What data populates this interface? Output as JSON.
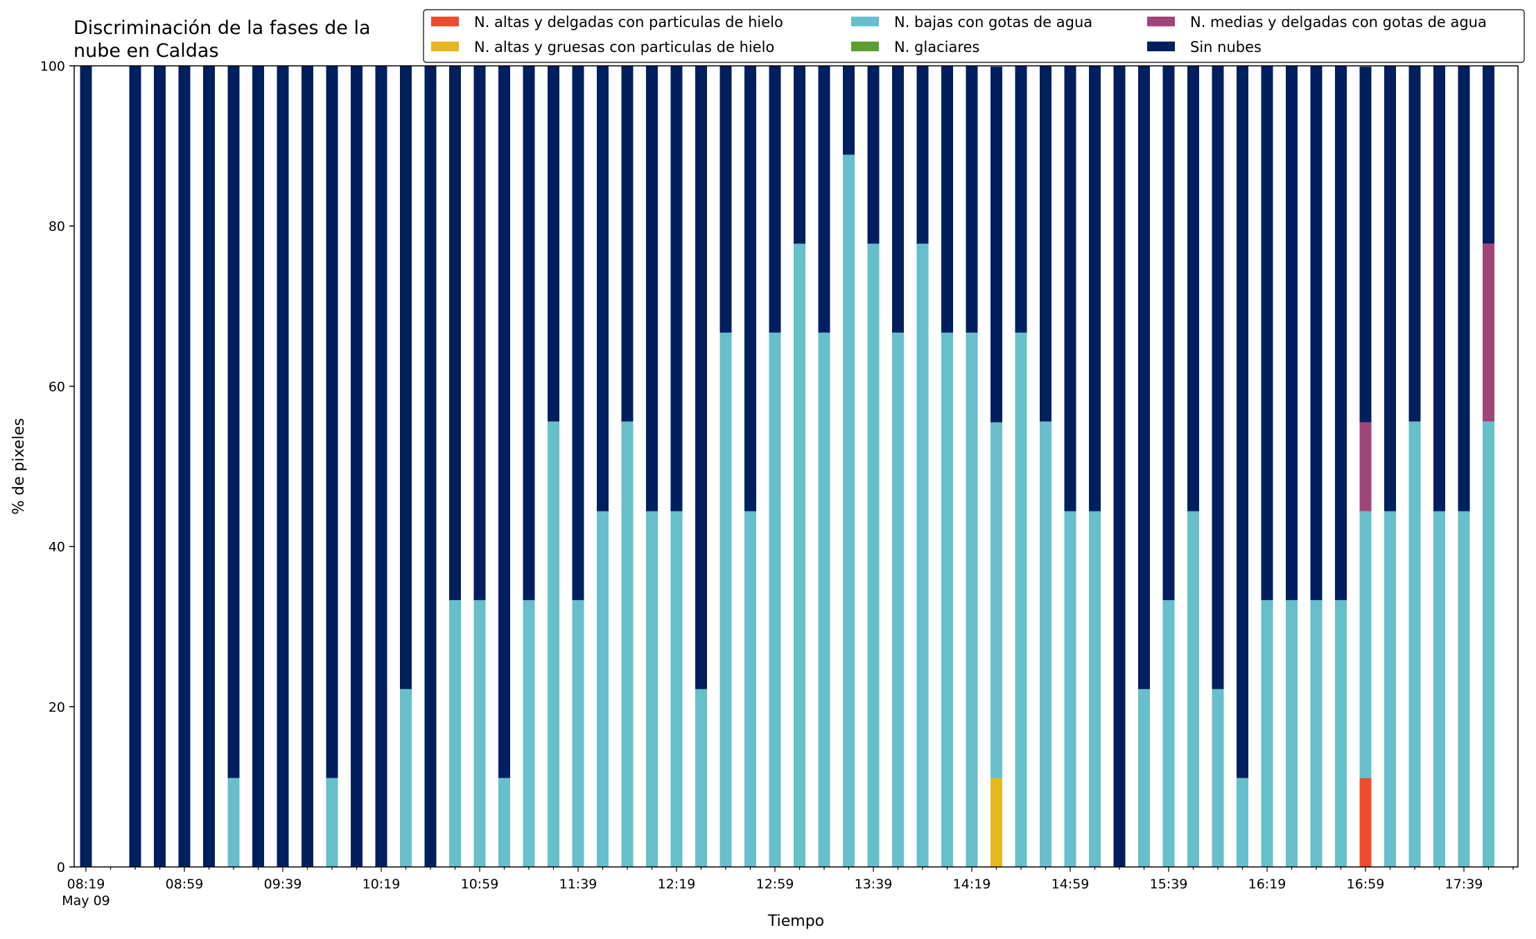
{
  "chart_data": {
    "type": "bar",
    "stacked": true,
    "title": "Discriminación de la fases de la\nnube en Caldas",
    "xlabel": "Tiempo",
    "ylabel": "% de pixeles",
    "ylim": [
      0,
      100
    ],
    "yticks": [
      0,
      20,
      40,
      60,
      80,
      100
    ],
    "grid": false,
    "legend_position": "top-right",
    "x_unit_minutes_per_bar": 10,
    "x_start": "08:19",
    "x_start_date": "May 09",
    "xtick_labels": [
      "08:19",
      "08:59",
      "09:39",
      "10:19",
      "10:59",
      "11:39",
      "12:19",
      "12:59",
      "13:39",
      "14:19",
      "14:59",
      "15:39",
      "16:19",
      "16:59",
      "17:39"
    ],
    "categories": [
      "08:19",
      "08:29",
      "08:39",
      "08:49",
      "08:59",
      "09:09",
      "09:19",
      "09:29",
      "09:39",
      "09:49",
      "09:59",
      "10:09",
      "10:19",
      "10:29",
      "10:39",
      "10:49",
      "10:59",
      "11:09",
      "11:19",
      "11:29",
      "11:39",
      "11:49",
      "11:59",
      "12:09",
      "12:19",
      "12:29",
      "12:39",
      "12:49",
      "12:59",
      "13:09",
      "13:19",
      "13:29",
      "13:39",
      "13:49",
      "13:59",
      "14:09",
      "14:19",
      "14:29",
      "14:39",
      "14:49",
      "14:59",
      "15:09",
      "15:19",
      "15:29",
      "15:39",
      "15:49",
      "15:59",
      "16:09",
      "16:19",
      "16:29",
      "16:39",
      "16:49",
      "16:59",
      "17:09",
      "17:19",
      "17:29",
      "17:39",
      "17:49",
      "17:59"
    ],
    "series": [
      {
        "name": "N. altas y delgadas con particulas de hielo",
        "color": "#ee4c2c",
        "values": [
          0,
          null,
          0,
          0,
          0,
          0,
          0,
          0,
          0,
          0,
          0,
          0,
          0,
          0,
          0,
          0,
          0,
          0,
          0,
          0,
          0,
          0,
          0,
          0,
          0,
          0,
          0,
          0,
          0,
          0,
          0,
          0,
          0,
          0,
          0,
          0,
          0,
          0,
          0,
          0,
          0,
          0,
          0,
          0,
          0,
          0,
          0,
          0,
          0,
          0,
          0,
          0,
          11.1,
          0,
          0,
          0,
          0,
          0,
          0
        ]
      },
      {
        "name": "N. altas y gruesas con particulas de hielo",
        "color": "#e6b81e",
        "values": [
          0,
          null,
          0,
          0,
          0,
          0,
          0,
          0,
          0,
          0,
          0,
          0,
          0,
          0,
          0,
          0,
          0,
          0,
          0,
          0,
          0,
          0,
          0,
          0,
          0,
          0,
          0,
          0,
          0,
          0,
          0,
          0,
          0,
          0,
          0,
          0,
          0,
          11.1,
          0,
          0,
          0,
          0,
          0,
          0,
          0,
          0,
          0,
          0,
          0,
          0,
          0,
          0,
          0,
          0,
          0,
          0,
          0,
          0,
          0
        ]
      },
      {
        "name": "N. bajas con gotas de agua",
        "color": "#66bfca",
        "values": [
          0,
          null,
          0,
          0,
          0,
          0,
          11.1,
          0,
          0,
          0,
          11.1,
          0,
          0,
          22.2,
          0,
          33.3,
          33.3,
          11.1,
          33.3,
          55.6,
          33.3,
          44.4,
          55.6,
          44.4,
          44.4,
          22.2,
          66.7,
          44.4,
          66.7,
          77.8,
          66.7,
          88.9,
          77.8,
          66.7,
          77.8,
          66.7,
          66.7,
          44.4,
          66.7,
          55.6,
          44.4,
          44.4,
          0,
          22.2,
          33.3,
          44.4,
          22.2,
          11.1,
          33.3,
          33.3,
          33.3,
          33.3,
          33.3,
          44.4,
          55.6,
          44.4,
          44.4,
          55.6,
          0
        ]
      },
      {
        "name": "N. glaciares",
        "color": "#5b9e2e",
        "values": [
          0,
          null,
          0,
          0,
          0,
          0,
          0,
          0,
          0,
          0,
          0,
          0,
          0,
          0,
          0,
          0,
          0,
          0,
          0,
          0,
          0,
          0,
          0,
          0,
          0,
          0,
          0,
          0,
          0,
          0,
          0,
          0,
          0,
          0,
          0,
          0,
          0,
          0,
          0,
          0,
          0,
          0,
          0,
          0,
          0,
          0,
          0,
          0,
          0,
          0,
          0,
          0,
          0,
          0,
          0,
          0,
          0,
          0,
          0
        ]
      },
      {
        "name": "N. medias y delgadas con gotas de agua",
        "color": "#a0447a",
        "values": [
          0,
          null,
          0,
          0,
          0,
          0,
          0,
          0,
          0,
          0,
          0,
          0,
          0,
          0,
          0,
          0,
          0,
          0,
          0,
          0,
          0,
          0,
          0,
          0,
          0,
          0,
          0,
          0,
          0,
          0,
          0,
          0,
          0,
          0,
          0,
          0,
          0,
          0,
          0,
          0,
          0,
          0,
          0,
          0,
          0,
          0,
          0,
          0,
          0,
          0,
          0,
          0,
          11.1,
          0,
          0,
          0,
          0,
          22.2,
          0
        ]
      },
      {
        "name": "Sin nubes",
        "color": "#001f5f",
        "values": [
          100,
          null,
          100,
          100,
          100,
          100,
          88.9,
          100,
          100,
          100,
          88.9,
          100,
          100,
          77.8,
          100,
          66.7,
          66.7,
          88.9,
          66.7,
          44.4,
          66.7,
          55.6,
          44.4,
          55.6,
          55.6,
          77.8,
          33.3,
          55.6,
          33.3,
          22.2,
          33.3,
          11.1,
          22.2,
          33.3,
          22.2,
          33.3,
          33.3,
          44.4,
          33.3,
          44.4,
          55.6,
          55.6,
          100,
          77.8,
          66.7,
          55.6,
          77.8,
          88.9,
          66.7,
          66.7,
          66.7,
          66.7,
          44.4,
          55.6,
          44.4,
          55.6,
          55.6,
          22.2,
          0
        ]
      }
    ]
  }
}
